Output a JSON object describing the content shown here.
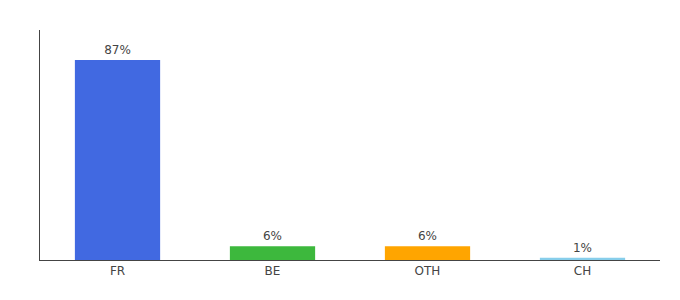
{
  "chart_data": {
    "type": "bar",
    "categories": [
      "FR",
      "BE",
      "OTH",
      "CH"
    ],
    "values": [
      87,
      6,
      6,
      1
    ],
    "value_labels": [
      "87%",
      "6%",
      "6%",
      "1%"
    ],
    "colors": [
      "#4169E1",
      "#3DB83D",
      "#FFA500",
      "#87CEEB"
    ],
    "ylim": [
      0,
      100
    ],
    "data_labels": true,
    "tick_labels": "x",
    "grid": false
  }
}
